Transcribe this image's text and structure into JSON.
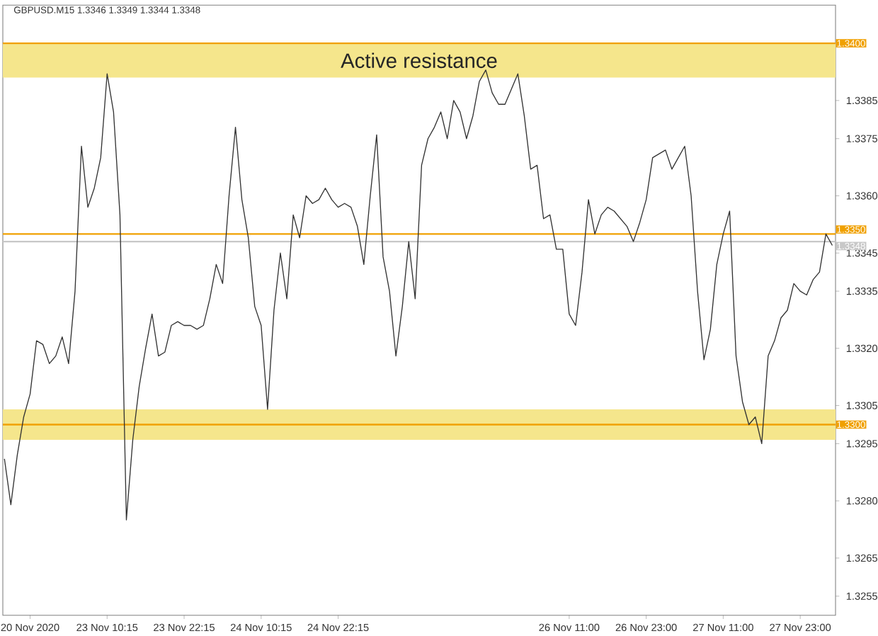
{
  "chart_data": {
    "type": "line",
    "title": "GBPUSD.M15 1.3346 1.3349 1.3344 1.3348",
    "categories": [
      null,
      null,
      null,
      null,
      "20 Nov 2020",
      null,
      null,
      null,
      null,
      null,
      null,
      null,
      null,
      null,
      null,
      null,
      "23 Nov 10:15",
      null,
      null,
      null,
      null,
      null,
      null,
      null,
      null,
      null,
      null,
      null,
      "23 Nov 22:15",
      null,
      null,
      null,
      null,
      null,
      null,
      null,
      null,
      null,
      null,
      null,
      "24 Nov 10:15",
      null,
      null,
      null,
      null,
      null,
      null,
      null,
      null,
      null,
      null,
      null,
      "24 Nov 22:15",
      null,
      null,
      null,
      null,
      null,
      null,
      null,
      null,
      null,
      null,
      null,
      null,
      null,
      null,
      null,
      null,
      null,
      null,
      null,
      null,
      null,
      null,
      null,
      null,
      null,
      null,
      null,
      null,
      null,
      null,
      null,
      null,
      null,
      null,
      null,
      "26 Nov 11:00",
      null,
      null,
      null,
      null,
      null,
      null,
      null,
      null,
      null,
      null,
      null,
      "26 Nov 23:00",
      null,
      null,
      null,
      null,
      null,
      null,
      null,
      null,
      null,
      null,
      null,
      "27 Nov 11:00",
      null,
      null,
      null,
      null,
      null,
      null,
      null,
      null,
      null,
      null,
      null,
      "27 Nov 23:00",
      null,
      null,
      null,
      null,
      null
    ],
    "series": [
      {
        "color": "#333333",
        "values": [
          1.3291,
          1.3279,
          1.3292,
          1.3302,
          1.3308,
          1.3322,
          1.3321,
          1.3316,
          1.3318,
          1.3323,
          1.3316,
          1.3335,
          1.3373,
          1.3357,
          1.3362,
          1.337,
          1.3392,
          1.3382,
          1.3355,
          1.3275,
          1.3296,
          1.331,
          1.332,
          1.3329,
          1.3318,
          1.3319,
          1.3326,
          1.3327,
          1.3326,
          1.3326,
          1.3325,
          1.3326,
          1.3333,
          1.3342,
          1.3337,
          1.336,
          1.3378,
          1.3359,
          1.3349,
          1.3331,
          1.3326,
          1.3304,
          1.333,
          1.3345,
          1.3333,
          1.3355,
          1.3349,
          1.336,
          1.3358,
          1.3359,
          1.3362,
          1.3359,
          1.3357,
          1.3358,
          1.3357,
          1.3352,
          1.3342,
          1.336,
          1.3376,
          1.3344,
          1.3335,
          1.3318,
          1.3331,
          1.3348,
          1.3333,
          1.3368,
          1.3375,
          1.3378,
          1.3382,
          1.3375,
          1.3385,
          1.3382,
          1.3375,
          1.3381,
          1.339,
          1.3393,
          1.3387,
          1.3384,
          1.3384,
          1.3388,
          1.3392,
          1.3381,
          1.3367,
          1.3368,
          1.3354,
          1.3355,
          1.3346,
          1.3346,
          1.3329,
          1.3326,
          1.334,
          1.3359,
          1.335,
          1.3355,
          1.3357,
          1.3356,
          1.3354,
          1.3352,
          1.3348,
          1.3353,
          1.3359,
          1.337,
          1.3371,
          1.3372,
          1.3367,
          1.337,
          1.3373,
          1.336,
          1.3335,
          1.3317,
          1.3325,
          1.3342,
          1.335,
          1.3356,
          1.3318,
          1.3306,
          1.33,
          1.3302,
          1.3295,
          1.3318,
          1.3322,
          1.3328,
          1.333,
          1.3337,
          1.3335,
          1.3334,
          1.3338,
          1.334,
          1.335,
          1.3347
        ]
      }
    ],
    "ylim": [
      1.325,
      1.341
    ],
    "yticks": [
      1.3255,
      1.3265,
      {
        "value": 1.328,
        "label": "1.3280"
      },
      1.3295,
      1.3305,
      {
        "value": 1.332,
        "label": "1.3320"
      },
      1.3335,
      1.3345,
      {
        "value": 1.336,
        "label": "1.3360"
      },
      1.3375,
      1.3385
    ],
    "ref_lines": [
      {
        "axis": "y",
        "value": 1.34,
        "label": "1.3400",
        "color": "#f0a000"
      },
      {
        "axis": "y",
        "value": 1.335,
        "label": "1.3350",
        "color": "#f0a000"
      },
      {
        "axis": "y",
        "value": 1.3348,
        "label": "1.3348",
        "color": "#c8c8c8"
      },
      {
        "axis": "y",
        "value": 1.33,
        "label": "1.3300",
        "color": "#f0a000"
      }
    ],
    "bands": [
      {
        "axis": "y",
        "from": 1.3391,
        "to": 1.34,
        "label": "Active resistance",
        "color": "#f5e68c"
      },
      {
        "axis": "y",
        "from": 1.3296,
        "to": 1.3304,
        "color": "#f5e68c"
      }
    ],
    "grid": false
  }
}
